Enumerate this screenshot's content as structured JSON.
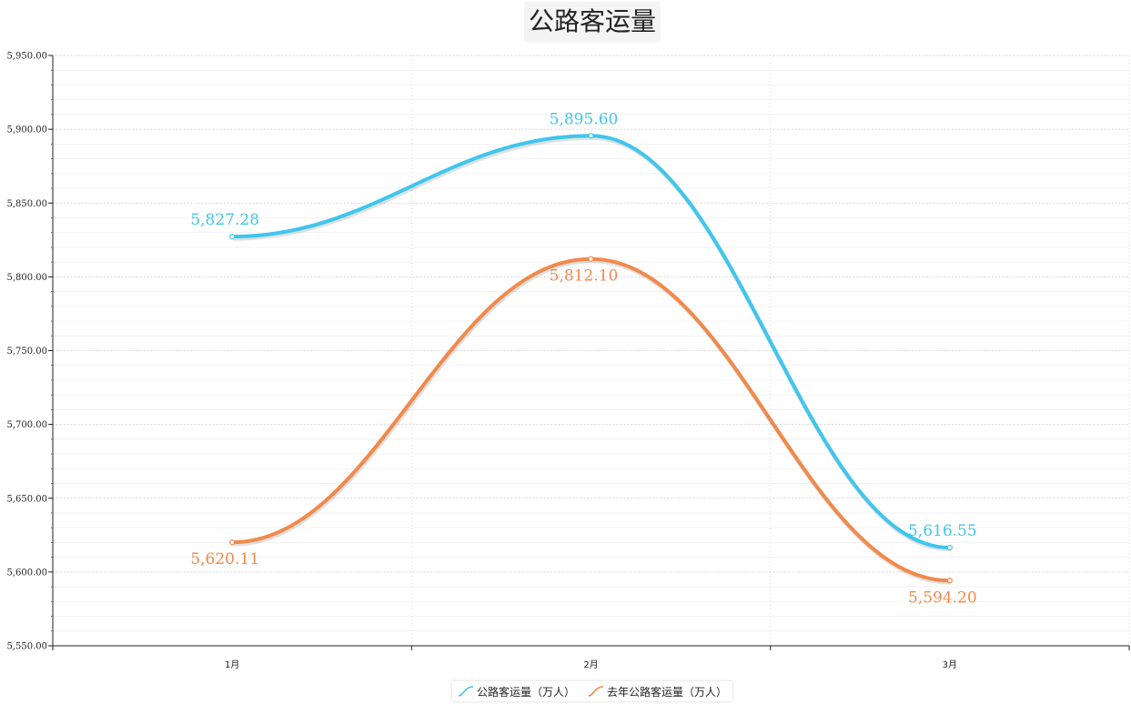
{
  "chart_data": {
    "type": "line",
    "title": "公路客运量",
    "xlabel": "",
    "ylabel": "",
    "categories": [
      "1月",
      "2月",
      "3月"
    ],
    "ylim": [
      5550,
      5950
    ],
    "yticks": [
      "5,550.00",
      "5,600.00",
      "5,650.00",
      "5,700.00",
      "5,750.00",
      "5,800.00",
      "5,850.00",
      "5,900.00",
      "5,950.00"
    ],
    "grid": true,
    "legend_position": "bottom",
    "series": [
      {
        "name": "公路客运量（万人）",
        "values": [
          5827.28,
          5895.6,
          5616.55
        ],
        "labels": [
          "5,827.28",
          "5,895.60",
          "5,616.55"
        ],
        "color": "#3ec6ee"
      },
      {
        "name": "去年公路客运量（万人）",
        "values": [
          5620.11,
          5812.1,
          5594.2
        ],
        "labels": [
          "5,620.11",
          "5,812.10",
          "5,594.20"
        ],
        "color": "#f2894a"
      }
    ]
  }
}
